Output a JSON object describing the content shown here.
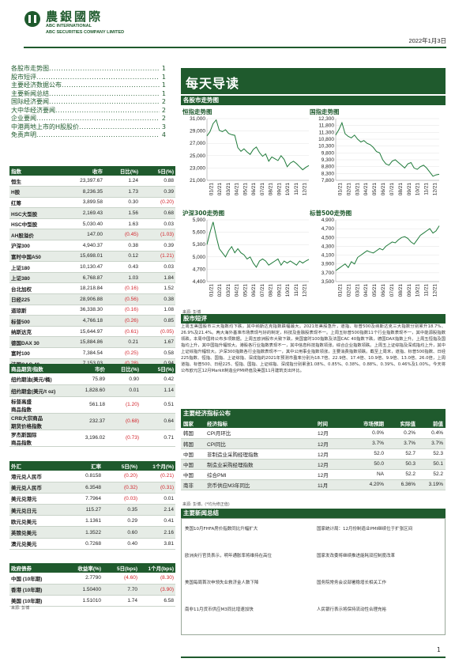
{
  "header": {
    "brand_cn": "農銀國際",
    "brand_en1": "ABC INTERNATIONAL",
    "brand_en2": "ABC SECURITIES COMPANY LIMITED",
    "date": "2022年1月3日"
  },
  "toc": [
    {
      "label": "各股市走势图",
      "page": "1"
    },
    {
      "label": "股市短评",
      "page": "1"
    },
    {
      "label": "主要经济数据公布",
      "page": "1"
    },
    {
      "label": "主要新闻总结",
      "page": "1"
    },
    {
      "label": "国际经济要闻",
      "page": "2"
    },
    {
      "label": "大中华经济要闻",
      "page": "2"
    },
    {
      "label": "企业要闻",
      "page": "2"
    },
    {
      "label": "中港两地上市的H股股价",
      "page": "3"
    },
    {
      "label": "免责声明",
      "page": "4"
    }
  ],
  "index_table": {
    "headers": [
      "指数",
      "收市",
      "日比(%)",
      "5日(%)"
    ],
    "rows": [
      [
        "恒生",
        "23,397.67",
        "1.24",
        "0.88"
      ],
      [
        "H股",
        "8,236.35",
        "1.73",
        "0.39"
      ],
      [
        "红筹",
        "3,899.58",
        "0.30",
        "(0.20)"
      ],
      [
        "HSC大型股",
        "2,169.43",
        "1.56",
        "0.68"
      ],
      [
        "HSC中型股",
        "5,030.40",
        "1.63",
        "0.03"
      ],
      [
        "AH股溢价",
        "147.00",
        "(0.45)",
        "(1.03)"
      ],
      [
        "沪深300",
        "4,940.37",
        "0.38",
        "0.39"
      ],
      [
        "富时中国A50",
        "15,698.01",
        "0.12",
        "(1.21)"
      ],
      [
        "上证180",
        "10,130.47",
        "0.43",
        "0.03"
      ],
      [
        "上证380",
        "6,768.87",
        "1.03",
        "1.84"
      ],
      [
        "台北加权",
        "18,218.84",
        "(0.16)",
        "1.52"
      ],
      [
        "日经225",
        "28,906.88",
        "(0.56)",
        "0.38"
      ],
      [
        "道琼斯",
        "36,338.30",
        "(0.16)",
        "1.08"
      ],
      [
        "标普500",
        "4,766.18",
        "(0.26)",
        "0.85"
      ],
      [
        "纳斯达克",
        "15,644.97",
        "(0.61)",
        "(0.05)"
      ],
      [
        "德国DAX 30",
        "15,884.86",
        "0.21",
        "1.67"
      ],
      [
        "富时100",
        "7,384.54",
        "(0.25)",
        "0.58"
      ],
      [
        "法国CAC 40",
        "7,153.03",
        "(0.28)",
        "0.94"
      ]
    ]
  },
  "commodity_table": {
    "headers": [
      "商品期货/指数",
      "市价",
      "日比(%)",
      "5日(%)"
    ],
    "rows": [
      [
        "纽约期油(美元/桶)",
        "75.89",
        "0.90",
        "0.42"
      ],
      [
        "纽约期金(美元/t oz)",
        "1,828.60",
        "0.01",
        "1.14"
      ],
      [
        "标普高盛\n商品指数",
        "561.18",
        "(1.20)",
        "0.51"
      ],
      [
        "CRB大宗商品\n期货价格指数",
        "232.37",
        "(0.68)",
        "0.64"
      ],
      [
        "罗杰斯国际\n商品指数",
        "3,196.02",
        "(0.73)",
        "0.71"
      ]
    ]
  },
  "fx_table": {
    "headers": [
      "外汇",
      "汇率",
      "5日(%)",
      "1个月(%)"
    ],
    "rows": [
      [
        "港元兑人民币",
        "0.8158",
        "(0.20)",
        "(0.21)"
      ],
      [
        "美元兑人民币",
        "6.3548",
        "(0.32)",
        "(0.31)"
      ],
      [
        "美元兑港元",
        "7.7964",
        "(0.03)",
        "0.01"
      ],
      [
        "美元兑日元",
        "115.27",
        "0.35",
        "2.14"
      ],
      [
        "欧元兑美元",
        "1.1361",
        "0.29",
        "0.41"
      ],
      [
        "英镑兑美元",
        "1.3522",
        "0.60",
        "2.16"
      ],
      [
        "澳元兑美元",
        "0.7268",
        "0.40",
        "3.81"
      ]
    ]
  },
  "bond_table": {
    "headers": [
      "政府债券",
      "收益率(%)",
      "5日(bps)",
      "1个月(bps)"
    ],
    "rows": [
      [
        "中国 (10年期)",
        "2.7790",
        "(4.60)",
        "(8.30)"
      ],
      [
        "香港 (10年期)",
        "1.50400",
        "7.70",
        "(3.90)"
      ],
      [
        "美国 (10年期)",
        "1.51010",
        "1.74",
        "6.58"
      ]
    ]
  },
  "source_label": "来源: 彭博",
  "report_title": "每天导读",
  "sections": {
    "charts": "各股市走势图",
    "commentary": "股市短评",
    "econ": "主要经济指标公布",
    "news": "主要新闻总结"
  },
  "charts_meta": {
    "x_ticks": [
      "01/21",
      "02/21",
      "03/21",
      "04/21",
      "05/21",
      "06/21",
      "07/21",
      "08/21",
      "09/21",
      "10/21",
      "11/21",
      "12/21"
    ],
    "source": "来源: 彭博"
  },
  "chart_data": [
    {
      "type": "line",
      "title": "恒指走势图",
      "ylim": [
        21000,
        31000
      ],
      "yticks": [
        21000,
        23000,
        25000,
        27000,
        29000,
        31000
      ],
      "ytick_labels": [
        "21,000",
        "23,000",
        "25,000",
        "27,000",
        "29,000",
        "31,000"
      ],
      "values": [
        28200,
        28900,
        30200,
        30800,
        29100,
        28900,
        29200,
        28600,
        28400,
        28300,
        26300,
        25700,
        26100,
        25600,
        25200,
        26000,
        26400,
        25500,
        24900,
        25300,
        24100,
        24800,
        24500,
        24200,
        25000,
        24400,
        23200,
        23800,
        24100,
        23700,
        23200,
        22700,
        23100,
        23400
      ]
    },
    {
      "type": "line",
      "title": "国指走势图",
      "ylim": [
        7800,
        12300
      ],
      "yticks": [
        7800,
        8300,
        8800,
        9300,
        9800,
        10300,
        10800,
        11300,
        11800,
        12300
      ],
      "ytick_labels": [
        "7,800",
        "8,300",
        "8,800",
        "9,300",
        "9,800",
        "10,300",
        "10,800",
        "11,300",
        "11,800",
        "12,300"
      ],
      "values": [
        11100,
        11500,
        12000,
        11200,
        11000,
        10900,
        11100,
        10800,
        10600,
        10700,
        10500,
        10400,
        10200,
        9900,
        9800,
        9300,
        9000,
        8900,
        9200,
        9300,
        9100,
        8900,
        8700,
        9000,
        9100,
        8700,
        8600,
        8800,
        8900,
        8700,
        8400,
        8100,
        8200,
        8236
      ]
    },
    {
      "type": "line",
      "title": "沪深300走势图",
      "ylim": [
        4400,
        5900
      ],
      "yticks": [
        4400,
        4700,
        5000,
        5300,
        5600,
        5900
      ],
      "ytick_labels": [
        "4,400",
        "4,700",
        "5,000",
        "5,300",
        "5,600",
        "5,900"
      ],
      "values": [
        5300,
        5600,
        5850,
        5500,
        5200,
        5100,
        5000,
        5150,
        5250,
        5100,
        5200,
        5100,
        5050,
        4950,
        5000,
        4850,
        4750,
        4900,
        4950,
        4900,
        4800,
        4850,
        4900,
        4950,
        4800,
        4900,
        4850,
        4900,
        4850,
        4800,
        4900,
        4850,
        4900,
        4940
      ]
    },
    {
      "type": "line",
      "title": "标普500走势图",
      "ylim": [
        3500,
        4900
      ],
      "yticks": [
        3500,
        3700,
        3900,
        4100,
        4300,
        4500,
        4700,
        4900
      ],
      "ytick_labels": [
        "3,500",
        "3,700",
        "3,900",
        "4,100",
        "4,300",
        "4,500",
        "4,700",
        "4,900"
      ],
      "values": [
        3750,
        3800,
        3850,
        3900,
        3820,
        3950,
        3900,
        4050,
        4100,
        4150,
        4200,
        4170,
        4150,
        4200,
        4250,
        4220,
        4300,
        4350,
        4400,
        4380,
        4450,
        4500,
        4520,
        4480,
        4400,
        4350,
        4450,
        4550,
        4600,
        4650,
        4700,
        4600,
        4650,
        4766
      ]
    }
  ],
  "commentary": "上周五美国股市三大指数均下跌，其中纳斯达克指数跌幅最大。2021年美股急升，道指、标普500及纳斯达克三大指数分别累升18.7%、26.9%及21.4%。两大海外基准市场表现与好的制定，科技及金融股表现不一。上周五标普500指数11个行业指数表现不一，其中能源股指数领跌。本周中国将公布多项数据。上周五欧洲股市大致下跌，英国富时100指数及法国CAC 40指数下跌，德国DAX指数上升。上周五恒指及国指均上升，其中国指升幅较大。港股各行业指数表现不一，其中信息科技指数领涨，综合企业指数领跌。上周五上证综指及深成指均上升，其中上证综指升幅较大。沪深300指数各行业指数表现不一，其中公用事业指数领涨，主要消费指数领跌。截至上周末，道指、标普500指数、日经225指数、恒指、国指、上证综指、深成指的2021年预测市盈率分别为18.7倍、22.9倍、17.4倍、10.9倍、9.9倍、13.0倍、26.0倍，上周道指、标普500、日经225、恒指、国指、上证综指、深成指分别累涨1.08%、0.85%、0.38%、0.88%、0.39%、0.46%及1.00%。今天将公布欧元区12月Markit制造业PMI终值及美国11月建筑支出环比。",
  "econ_table": {
    "headers": [
      "国家",
      "经济指标",
      "时间",
      "市场预期",
      "实际值",
      "前值"
    ],
    "rows": [
      [
        "韩国",
        "CPI月环比",
        "12月",
        "0.0%",
        "0.2%",
        "0.4%"
      ],
      [
        "韩国",
        "CPI同比",
        "12月",
        "3.7%",
        "3.7%",
        "3.7%"
      ],
      [
        "中国",
        "非制造业采购经理指数",
        "12月",
        "52.0",
        "52.7",
        "52.3"
      ],
      [
        "中国",
        "制造业采购经理指数",
        "12月",
        "50.0",
        "50.3",
        "50.1"
      ],
      [
        "中国",
        "综合PMI",
        "12月",
        "NA",
        "52.2",
        "52.2"
      ],
      [
        "南非",
        "货币供应M3年同比",
        "11月",
        "4.20%",
        "6.36%",
        "3.19%"
      ]
    ],
    "source": "来源: 彭博，(*均为修正值)"
  },
  "news": {
    "left": [
      "美国10月FHFA房价指数同比升幅扩大",
      "欧洲央行官员表示，明年通胀率将维持在高位",
      "美国每周首次申领失业救济金人数下降",
      "南非11月货币供应M3同比增速加快"
    ],
    "right": [
      "国家统计局：12月份制造业PMI继续位于扩张区间",
      "国家发改委将继续推进能耗双控制度改革",
      "国务院常务会议部署稳增长相关工作",
      "人民银行表示将保持流动性合理充裕"
    ]
  },
  "page_number": "1"
}
